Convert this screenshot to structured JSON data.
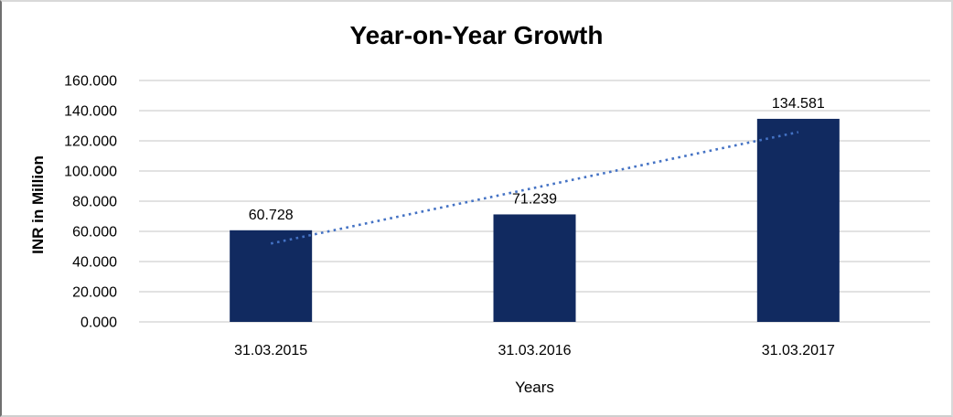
{
  "chart": {
    "title": "Year-on-Year Growth",
    "x_axis_title": "Years",
    "y_axis_title": "INR in Million"
  },
  "chart_data": {
    "type": "bar",
    "title": "Year-on-Year Growth",
    "xlabel": "Years",
    "ylabel": "INR in Million",
    "categories": [
      "31.03.2015",
      "31.03.2016",
      "31.03.2017"
    ],
    "series": [
      {
        "name": "INR in Million",
        "values": [
          60.728,
          71.239,
          134.581
        ]
      }
    ],
    "value_labels": [
      "60.728",
      "71.239",
      "134.581"
    ],
    "ylim": [
      0,
      160
    ],
    "ytick_step": 20,
    "ytick_labels": [
      "0.000",
      "20.000",
      "40.000",
      "60.000",
      "80.000",
      "100.000",
      "120.000",
      "140.000",
      "160.000"
    ],
    "grid": true,
    "legend_position": "none",
    "trendline": {
      "type": "linear",
      "style": "dotted",
      "color": "#4472C4"
    },
    "colors": {
      "bar": "#112A60",
      "gridline": "#D9D9D9",
      "text": "#000000",
      "trend": "#4472C4"
    }
  }
}
